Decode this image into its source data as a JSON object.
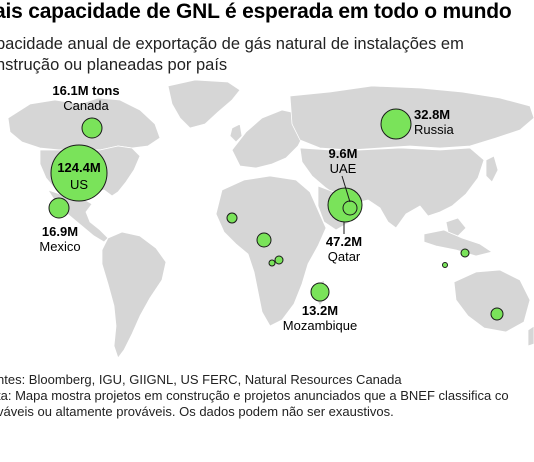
{
  "header": {
    "title": "ais capacidade de GNL é esperada em todo o mundo",
    "subtitle_line1": "pacidade anual de exportação de gás natural de instalações em",
    "subtitle_line2": "nstrução ou planeadas por país"
  },
  "map": {
    "land_color": "#d6d6d6",
    "bubble_color": "#7ae35a",
    "bubble_stroke": "#1a1a1a",
    "bubbles": [
      {
        "id": "us",
        "value": "124.4M",
        "label": "US"
      },
      {
        "id": "canada",
        "value": "16.1M tons",
        "label": "Canada"
      },
      {
        "id": "mexico",
        "value": "16.9M",
        "label": "Mexico"
      },
      {
        "id": "russia",
        "value": "32.8M",
        "label": "Russia"
      },
      {
        "id": "uae",
        "value": "9.6M",
        "label": "UAE"
      },
      {
        "id": "qatar",
        "value": "47.2M",
        "label": "Qatar"
      },
      {
        "id": "mozambique",
        "value": "13.2M",
        "label": "Mozambique"
      },
      {
        "id": "west-africa",
        "value": "",
        "label": ""
      },
      {
        "id": "senegal",
        "value": "",
        "label": ""
      },
      {
        "id": "cameroon",
        "value": "",
        "label": ""
      },
      {
        "id": "gabon",
        "value": "",
        "label": ""
      },
      {
        "id": "indonesia",
        "value": "",
        "label": ""
      },
      {
        "id": "malaysia",
        "value": "",
        "label": ""
      },
      {
        "id": "australia",
        "value": "",
        "label": ""
      }
    ]
  },
  "footer": {
    "sources": "ntes: Bloomberg, IGU, GIIGNL, US FERC, Natural Resources Canada",
    "note_line1": "ta: Mapa mostra projetos em construção e projetos anunciados que a BNEF classifica co",
    "note_line2": "váveis ou altamente prováveis. Os dados podem não ser exaustivos."
  }
}
